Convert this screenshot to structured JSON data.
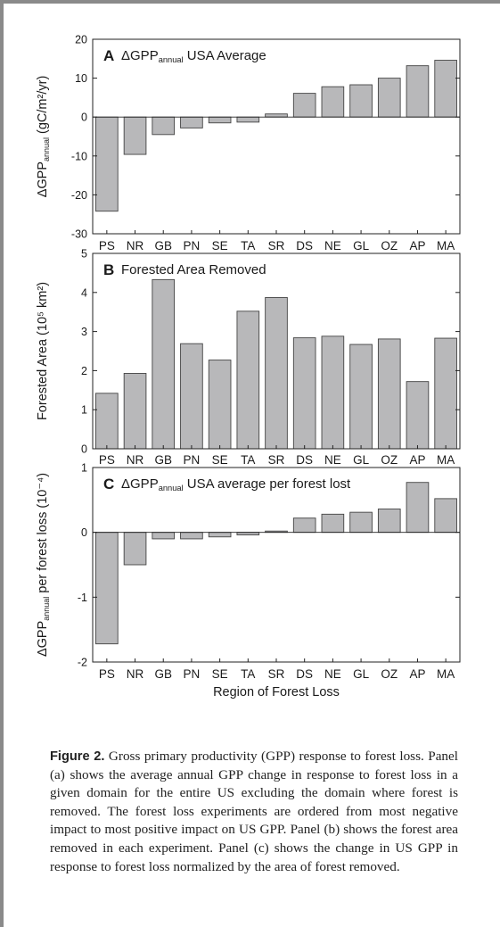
{
  "chart_data": [
    {
      "type": "bar",
      "panel": "A",
      "title_main": "ΔGPP",
      "title_sub": "annual",
      "title_rest": " USA Average",
      "ylabel_main": "ΔGPP",
      "ylabel_sub": "annual",
      "ylabel_rest": " (gC/m²/yr)",
      "categories": [
        "PS",
        "NR",
        "GB",
        "PN",
        "SE",
        "TA",
        "SR",
        "DS",
        "NE",
        "GL",
        "OZ",
        "AP",
        "MA"
      ],
      "values": [
        -24.2,
        -9.6,
        -4.5,
        -2.8,
        -1.5,
        -1.3,
        0.8,
        6.1,
        7.8,
        8.3,
        10.0,
        13.2,
        14.6
      ],
      "ylim": [
        -30,
        20
      ],
      "yticks": [
        -30,
        -20,
        -10,
        0,
        10,
        20
      ],
      "ytick_labels": [
        "-30",
        "-20",
        "-10",
        "0",
        "10",
        "20"
      ],
      "grid": false
    },
    {
      "type": "bar",
      "panel": "B",
      "title_main": "Forested Area Removed",
      "title_sub": "",
      "title_rest": "",
      "ylabel_main": "Forested Area (10⁵ km²)",
      "ylabel_sub": "",
      "ylabel_rest": "",
      "categories": [
        "PS",
        "NR",
        "GB",
        "PN",
        "SE",
        "TA",
        "SR",
        "DS",
        "NE",
        "GL",
        "OZ",
        "AP",
        "MA"
      ],
      "values": [
        1.42,
        1.93,
        4.33,
        2.69,
        2.27,
        3.52,
        3.87,
        2.84,
        2.88,
        2.67,
        2.81,
        1.72,
        2.83
      ],
      "ylim": [
        0,
        5
      ],
      "yticks": [
        0,
        1,
        2,
        3,
        4,
        5
      ],
      "ytick_labels": [
        "0",
        "1",
        "2",
        "3",
        "4",
        "5"
      ],
      "grid": false
    },
    {
      "type": "bar",
      "panel": "C",
      "title_main": "ΔGPP",
      "title_sub": "annual",
      "title_rest": " USA average per forest lost",
      "ylabel_main": "ΔGPP",
      "ylabel_sub": "annual",
      "ylabel_rest": " per forest loss (10⁻⁴)",
      "xlabel": "Region of Forest Loss",
      "categories": [
        "PS",
        "NR",
        "GB",
        "PN",
        "SE",
        "TA",
        "SR",
        "DS",
        "NE",
        "GL",
        "OZ",
        "AP",
        "MA"
      ],
      "values": [
        -1.72,
        -0.5,
        -0.1,
        -0.1,
        -0.07,
        -0.04,
        0.02,
        0.22,
        0.28,
        0.31,
        0.36,
        0.77,
        0.52
      ],
      "ylim": [
        -2,
        1
      ],
      "yticks": [
        -2,
        -1,
        0,
        1
      ],
      "ytick_labels": [
        "-2",
        "-1",
        "0",
        "1"
      ],
      "grid": false
    }
  ],
  "caption": {
    "label": "Figure 2.",
    "text": " Gross primary productivity (GPP) response to forest loss. Panel (a) shows the average annual GPP change in response to forest loss in a given domain for the entire US excluding the domain where forest is removed. The forest loss experiments are ordered from most negative impact to most positive impact on US GPP. Panel (b) shows the forest area removed in each experiment. Panel (c) shows the change in US GPP in response to forest loss normalized by the area of forest removed."
  },
  "colors": {
    "bar_fill": "#b8b8ba",
    "bar_stroke": "#444444",
    "axis": "#222222"
  }
}
